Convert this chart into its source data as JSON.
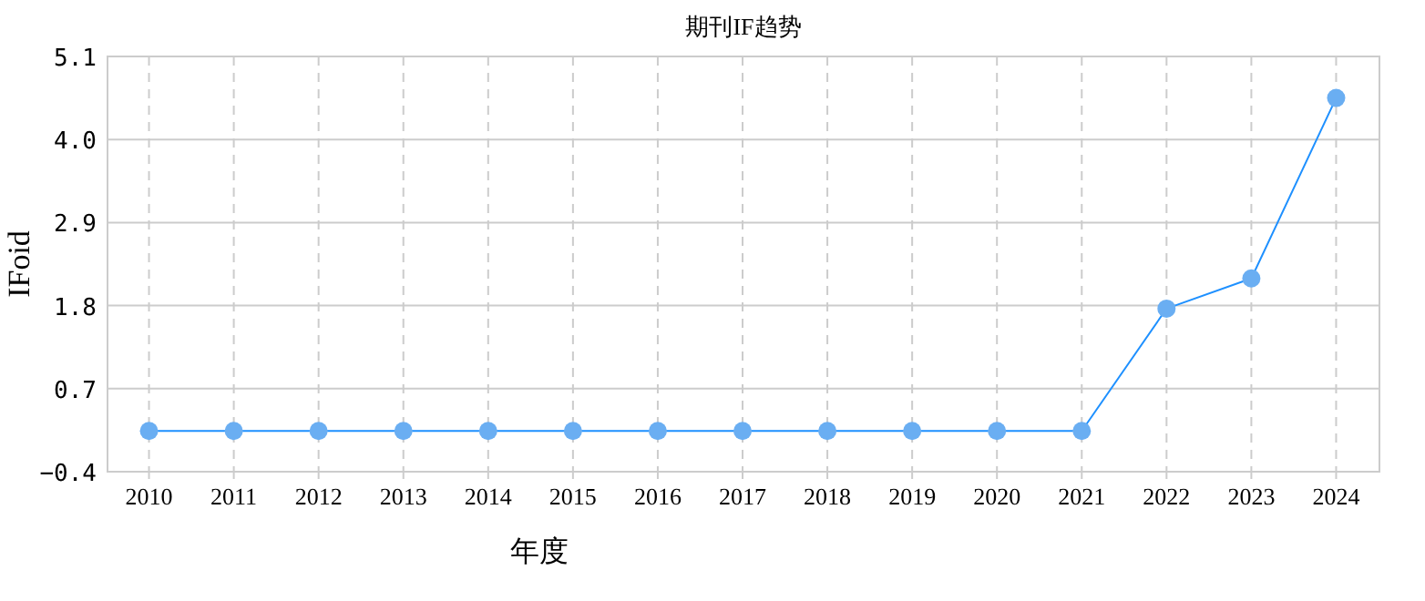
{
  "chart_data": {
    "type": "line",
    "title": "期刊IF趋势",
    "xlabel": "年度",
    "ylabel": "IFoid",
    "categories": [
      "2010",
      "2011",
      "2012",
      "2013",
      "2014",
      "2015",
      "2016",
      "2017",
      "2018",
      "2019",
      "2020",
      "2021",
      "2022",
      "2023",
      "2024"
    ],
    "series": [
      {
        "color": "#1e90ff",
        "values": [
          0.14,
          0.14,
          0.14,
          0.14,
          0.14,
          0.14,
          0.14,
          0.14,
          0.14,
          0.14,
          0.14,
          0.14,
          1.76,
          2.16,
          4.55
        ]
      }
    ],
    "ylim": [
      -0.4,
      5.1
    ],
    "yticks": [
      -0.4,
      0.7,
      1.8,
      2.9,
      {
        "value": 4,
        "label": "4.0"
      },
      5.1
    ],
    "grid": true,
    "marker": "circle",
    "line_style": "solid"
  }
}
